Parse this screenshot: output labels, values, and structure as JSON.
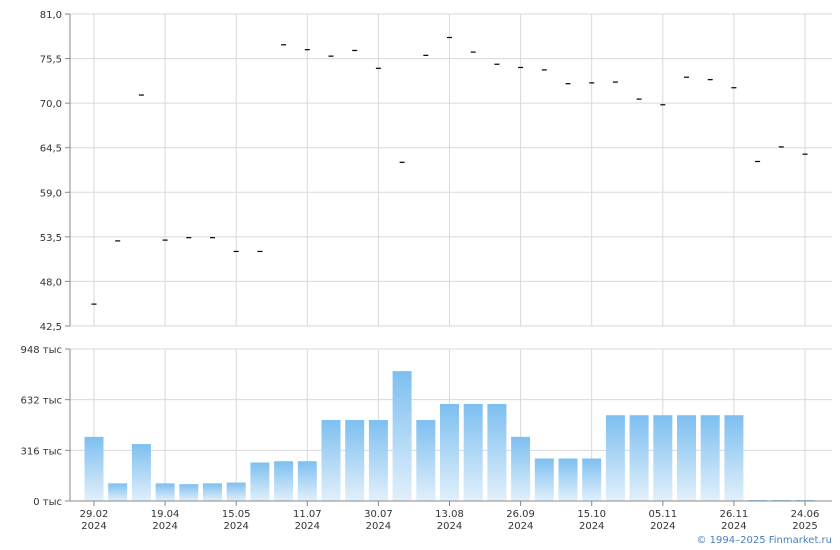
{
  "chart_data": [
    {
      "type": "scatter",
      "marker": "dash",
      "ylim": [
        42.5,
        81.0
      ],
      "ytick_labels": [
        "81,0",
        "75,5",
        "70,0",
        "64,5",
        "59,0",
        "53,5",
        "48,0",
        "42,5"
      ],
      "grid": true,
      "values": [
        45.2,
        53.0,
        71.0,
        53.1,
        53.4,
        53.4,
        51.7,
        51.7,
        77.2,
        76.6,
        75.8,
        76.5,
        74.3,
        62.7,
        75.9,
        78.1,
        76.3,
        74.8,
        74.4,
        74.1,
        72.4,
        72.5,
        72.6,
        70.5,
        69.8,
        73.2,
        72.9,
        71.9,
        62.8,
        64.6,
        63.7
      ]
    },
    {
      "type": "bar",
      "ylim": [
        0,
        948
      ],
      "ytick_labels": [
        "948 тыс",
        "632 тыс",
        "316 тыс",
        "0 тыс"
      ],
      "grid": true,
      "bar_color": "#7dbff0",
      "values": [
        400,
        110,
        355,
        110,
        105,
        110,
        115,
        240,
        248,
        248,
        505,
        505,
        505,
        810,
        505,
        605,
        605,
        605,
        400,
        265,
        265,
        265,
        535,
        535,
        535,
        535,
        535,
        535,
        4,
        4,
        4
      ]
    }
  ],
  "x_ticks": [
    {
      "index": 0,
      "label": "29.02",
      "year": "2024"
    },
    {
      "index": 3,
      "label": "19.04",
      "year": "2024"
    },
    {
      "index": 6,
      "label": "15.05",
      "year": "2024"
    },
    {
      "index": 9,
      "label": "11.07",
      "year": "2024"
    },
    {
      "index": 12,
      "label": "30.07",
      "year": "2024"
    },
    {
      "index": 15,
      "label": "13.08",
      "year": "2024"
    },
    {
      "index": 18,
      "label": "26.09",
      "year": "2024"
    },
    {
      "index": 21,
      "label": "15.10",
      "year": "2024"
    },
    {
      "index": 24,
      "label": "05.11",
      "year": "2024"
    },
    {
      "index": 27,
      "label": "26.11",
      "year": "2024"
    },
    {
      "index": 30,
      "label": "24.06",
      "year": "2025"
    }
  ],
  "credit": "© 1994–2025 Finmarket.ru"
}
